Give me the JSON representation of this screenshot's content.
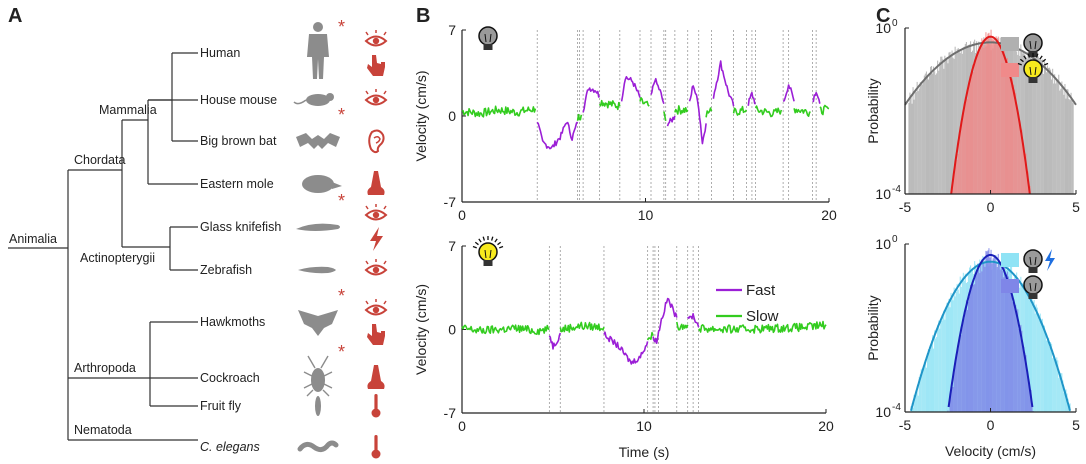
{
  "panels": {
    "a": "A",
    "b": "B",
    "c": "C"
  },
  "tree": {
    "root": "Animalia",
    "clades": {
      "chordata": "Chordata",
      "mammalia": "Mammalia",
      "actinopterygii": "Actinopterygii",
      "arthropoda": "Arthropoda",
      "nematoda": "Nematoda"
    },
    "species": [
      {
        "name": "Human",
        "italic": false,
        "asterisk": true,
        "senses": [
          "eye-icon",
          "touch-hand-icon"
        ]
      },
      {
        "name": "House mouse",
        "italic": false,
        "asterisk": false,
        "senses": [
          "eye-icon"
        ]
      },
      {
        "name": "Big brown bat",
        "italic": false,
        "asterisk": true,
        "senses": [
          "ear-icon"
        ]
      },
      {
        "name": "Eastern mole",
        "italic": false,
        "asterisk": false,
        "senses": [
          "nose-icon"
        ]
      },
      {
        "name": "Glass knifefish",
        "italic": false,
        "asterisk": true,
        "senses": [
          "eye-icon",
          "electric-bolt-icon"
        ]
      },
      {
        "name": "Zebrafish",
        "italic": false,
        "asterisk": false,
        "senses": [
          "eye-icon"
        ]
      },
      {
        "name": "Hawkmoths",
        "italic": false,
        "asterisk": true,
        "senses": [
          "eye-icon",
          "touch-hand-icon"
        ]
      },
      {
        "name": "Cockroach",
        "italic": false,
        "asterisk": true,
        "senses": [
          "nose-icon"
        ]
      },
      {
        "name": "Fruit fly",
        "italic": false,
        "asterisk": false,
        "senses": [
          "thermometer-icon"
        ]
      },
      {
        "name": "C. elegans",
        "italic": true,
        "asterisk": false,
        "senses": [
          "thermometer-icon"
        ]
      }
    ],
    "asterisk_char": "*",
    "colors": {
      "sense": "#c8433a",
      "animal": "#8c8c8c",
      "line": "#333333"
    }
  },
  "chart_data": [
    {
      "type": "line",
      "id": "velocity-dark",
      "condition_icon": "dark-bulb-icon",
      "xlabel": "",
      "ylabel": "Velocity (cm/s)",
      "xlim": [
        0,
        20
      ],
      "ylim": [
        -7,
        7
      ],
      "xticks": [
        "0",
        "10",
        "20"
      ],
      "yticks": [
        "7",
        "0",
        "-7"
      ],
      "series": [
        {
          "name": "Fast",
          "color": "#9b1fd6"
        },
        {
          "name": "Slow",
          "color": "#33cc1f"
        }
      ],
      "segments": [
        {
          "state": "slow",
          "points": [
            [
              0,
              0.4
            ],
            [
              1,
              0.2
            ],
            [
              2,
              0.5
            ],
            [
              3,
              0.3
            ],
            [
              4,
              0.6
            ]
          ]
        },
        {
          "state": "fast",
          "points": [
            [
              4.1,
              -0.4
            ],
            [
              4.4,
              -2.2
            ],
            [
              4.9,
              -2.6
            ],
            [
              5.4,
              -1.6
            ],
            [
              5.7,
              -0.4
            ],
            [
              6.0,
              -1.8
            ],
            [
              6.3,
              -0.5
            ]
          ]
        },
        {
          "state": "slow",
          "points": [
            [
              6.3,
              -0.2
            ],
            [
              6.5,
              0.1
            ]
          ]
        },
        {
          "state": "fast",
          "points": [
            [
              6.6,
              0.5
            ],
            [
              6.9,
              2.3
            ],
            [
              7.3,
              2.1
            ],
            [
              7.5,
              1.6
            ]
          ]
        },
        {
          "state": "slow",
          "points": [
            [
              7.5,
              1.2
            ],
            [
              8.0,
              1.0
            ],
            [
              8.6,
              0.8
            ]
          ]
        },
        {
          "state": "fast",
          "points": [
            [
              8.7,
              1.4
            ],
            [
              8.9,
              3.2
            ],
            [
              9.3,
              2.8
            ],
            [
              9.7,
              1.5
            ]
          ]
        },
        {
          "state": "slow",
          "points": [
            [
              9.7,
              1.2
            ],
            [
              10.2,
              0.8
            ]
          ]
        },
        {
          "state": "fast",
          "points": [
            [
              10.3,
              1.5
            ],
            [
              10.5,
              3.0
            ],
            [
              10.8,
              2.0
            ],
            [
              11.0,
              1.0
            ]
          ]
        },
        {
          "state": "slow",
          "points": [
            [
              11.0,
              0.1
            ],
            [
              11.1,
              -0.4
            ]
          ]
        },
        {
          "state": "fast",
          "points": [
            [
              11.2,
              -0.6
            ],
            [
              11.4,
              -0.4
            ],
            [
              11.6,
              0.0
            ]
          ]
        },
        {
          "state": "slow",
          "points": [
            [
              11.6,
              0.5
            ],
            [
              12.3,
              0.5
            ]
          ]
        },
        {
          "state": "fast",
          "points": [
            [
              12.4,
              1.0
            ],
            [
              12.6,
              2.6
            ],
            [
              12.9,
              0.8
            ],
            [
              13.1,
              -2.2
            ],
            [
              13.3,
              -0.6
            ]
          ]
        },
        {
          "state": "slow",
          "points": [
            [
              13.3,
              0.2
            ],
            [
              13.6,
              0.4
            ]
          ]
        },
        {
          "state": "fast",
          "points": [
            [
              13.7,
              1.6
            ],
            [
              14.1,
              4.3
            ],
            [
              14.5,
              2.0
            ],
            [
              14.8,
              0.8
            ]
          ]
        },
        {
          "state": "slow",
          "points": [
            [
              14.8,
              0.3
            ],
            [
              15.5,
              0.5
            ]
          ]
        },
        {
          "state": "fast",
          "points": [
            [
              15.6,
              1.0
            ],
            [
              15.8,
              1.8
            ],
            [
              16.0,
              1.0
            ]
          ]
        },
        {
          "state": "slow",
          "points": [
            [
              16.0,
              0.5
            ],
            [
              17.0,
              0.2
            ],
            [
              17.4,
              0.5
            ]
          ]
        },
        {
          "state": "fast",
          "points": [
            [
              17.5,
              1.0
            ],
            [
              17.8,
              2.6
            ],
            [
              18.1,
              1.2
            ]
          ]
        },
        {
          "state": "slow",
          "points": [
            [
              18.1,
              0.6
            ],
            [
              19.0,
              0.3
            ]
          ]
        },
        {
          "state": "fast",
          "points": [
            [
              19.1,
              1.2
            ],
            [
              19.3,
              2.1
            ],
            [
              19.5,
              1.0
            ]
          ]
        },
        {
          "state": "slow",
          "points": [
            [
              19.5,
              0.4
            ],
            [
              20,
              0.6
            ]
          ]
        }
      ],
      "transitions": [
        4.1,
        6.3,
        6.4,
        6.6,
        7.5,
        8.6,
        9.7,
        10.3,
        11.0,
        11.1,
        11.6,
        12.3,
        12.9,
        13.6,
        14.8,
        15.5,
        15.8,
        16.0,
        17.5,
        17.8,
        19.1,
        19.3
      ]
    },
    {
      "type": "line",
      "id": "velocity-light",
      "condition_icon": "lit-bulb-icon",
      "xlabel": "Time (s)",
      "ylabel": "Velocity (cm/s)",
      "xlim": [
        0,
        20
      ],
      "ylim": [
        -7,
        7
      ],
      "xticks": [
        "0",
        "10",
        "20"
      ],
      "yticks": [
        "7",
        "0",
        "-7"
      ],
      "legend": "top-right",
      "series": [
        {
          "name": "Fast",
          "color": "#9b1fd6"
        },
        {
          "name": "Slow",
          "color": "#33cc1f"
        }
      ],
      "segments": [
        {
          "state": "slow",
          "points": [
            [
              0,
              0.1
            ],
            [
              1,
              -0.1
            ],
            [
              2,
              0.0
            ],
            [
              3,
              0.1
            ],
            [
              4,
              -0.1
            ],
            [
              4.8,
              0.0
            ]
          ]
        },
        {
          "state": "fast",
          "points": [
            [
              4.8,
              -0.4
            ],
            [
              5.0,
              -1.4
            ],
            [
              5.2,
              -1.0
            ],
            [
              5.4,
              -0.3
            ]
          ]
        },
        {
          "state": "slow",
          "points": [
            [
              5.4,
              0.0
            ],
            [
              6.5,
              0.3
            ],
            [
              7.8,
              0.2
            ]
          ]
        },
        {
          "state": "fast",
          "points": [
            [
              7.8,
              -0.4
            ],
            [
              8.6,
              -1.4
            ],
            [
              9.3,
              -2.8
            ],
            [
              9.8,
              -2.3
            ],
            [
              10.2,
              -1.0
            ]
          ]
        },
        {
          "state": "slow",
          "points": [
            [
              10.2,
              -0.8
            ],
            [
              10.5,
              -0.5
            ]
          ]
        },
        {
          "state": "fast",
          "points": [
            [
              10.5,
              -0.6
            ],
            [
              10.7,
              -1.0
            ],
            [
              10.9,
              0.5
            ],
            [
              11.3,
              2.6
            ],
            [
              11.8,
              1.0
            ]
          ]
        },
        {
          "state": "slow",
          "points": [
            [
              11.8,
              0.3
            ],
            [
              12.4,
              0.4
            ]
          ]
        },
        {
          "state": "fast",
          "points": [
            [
              12.4,
              0.8
            ],
            [
              12.7,
              1.2
            ],
            [
              13.0,
              0.2
            ]
          ]
        },
        {
          "state": "slow",
          "points": [
            [
              13.0,
              0.1
            ],
            [
              15,
              0.0
            ],
            [
              17,
              0.1
            ],
            [
              19,
              0.2
            ],
            [
              20,
              0.4
            ]
          ]
        }
      ],
      "transitions": [
        4.8,
        5.4,
        7.8,
        10.2,
        10.5,
        10.6,
        10.8,
        11.8,
        12.4,
        12.7,
        13.0
      ]
    },
    {
      "type": "area",
      "id": "prob-dark-vs-light",
      "xlabel": "",
      "ylabel": "Probability",
      "xlim": [
        -5,
        5
      ],
      "yscale": "log",
      "ylim": [
        0.0001,
        1
      ],
      "xticks": [
        "-5",
        "0",
        "5"
      ],
      "ytick_bases": [
        "10",
        "10"
      ],
      "ytick_exps": [
        "0",
        "-4"
      ],
      "legend": "top-right",
      "series": [
        {
          "name": "",
          "icon": "dark-bulb-icon",
          "color": "#b0b0b0",
          "line": "#6e6e6e",
          "sigma": 1.9,
          "peak": 0.45
        },
        {
          "name": "",
          "icon": "lit-bulb-icon",
          "color": "#f08a8a",
          "line": "#e01919",
          "sigma": 0.55,
          "peak": 0.62
        }
      ]
    },
    {
      "type": "area",
      "id": "prob-electric",
      "xlabel": "Velocity (cm/s)",
      "ylabel": "Probability",
      "xlim": [
        -5,
        5
      ],
      "yscale": "log",
      "ylim": [
        0.0001,
        1
      ],
      "xticks": [
        "-5",
        "0",
        "5"
      ],
      "ytick_bases": [
        "10",
        "10"
      ],
      "ytick_exps": [
        "0",
        "-4"
      ],
      "legend": "top-right",
      "series": [
        {
          "name": "",
          "icon": "dark-bulb-electric-icon",
          "color": "#8fe3f5",
          "line": "#1f95c8",
          "sigma": 1.15,
          "peak": 0.38
        },
        {
          "name": "",
          "icon": "dark-bulb-icon",
          "color": "#7f86e8",
          "line": "#1a1fb8",
          "sigma": 0.6,
          "peak": 0.55
        }
      ]
    }
  ]
}
